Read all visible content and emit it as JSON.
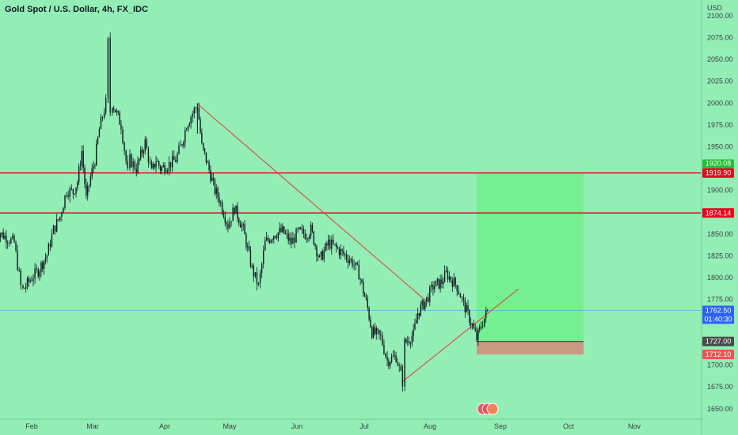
{
  "header": {
    "title": "Gold Spot / U.S. Dollar, 4h, FX_IDC"
  },
  "colors": {
    "background": "#92eeb5",
    "candle": "#131722",
    "resistance": "#e8001c",
    "trendline": "#e53935",
    "current_price_line": "#4fa3e0",
    "target_zone": "#6ef08a",
    "stop_zone": "#c89a82",
    "tag_green": "#21c034",
    "tag_red": "#e8001c",
    "tag_blue": "#2962ff",
    "tag_dark": "#4a4a4a",
    "tag_stop": "#ef5350"
  },
  "chart_data": {
    "type": "candlestick",
    "title": "Gold Spot / U.S. Dollar, 4h, FX_IDC",
    "ylabel": "USD",
    "ylim": [
      1638,
      2118
    ],
    "y_ticks": [
      1650,
      1675,
      1700,
      1725,
      1750,
      1775,
      1800,
      1825,
      1850,
      1875,
      1900,
      1925,
      1950,
      1975,
      2000,
      2025,
      2050,
      2075,
      2100
    ],
    "y_tick_labels": [
      "1650.00",
      "1675.00",
      "1700.00",
      "1725.00",
      "1750.00",
      "1775.00",
      "1800.00",
      "1825.00",
      "1850.00",
      "1875.00",
      "1900.00",
      "1925.00",
      "1950.00",
      "1975.00",
      "2000.00",
      "2025.00",
      "2050.00",
      "2075.00",
      "2100.00"
    ],
    "x_ticks": [
      "Feb",
      "Mar",
      "Apr",
      "May",
      "Jun",
      "Jul",
      "Aug",
      "Sep",
      "Oct",
      "Nov"
    ],
    "price_path": [
      {
        "x": "Jan 15",
        "y": 1820
      },
      {
        "x": "Jan 17",
        "y": 1852
      },
      {
        "x": "Jan 21",
        "y": 1845
      },
      {
        "x": "Jan 24",
        "y": 1840
      },
      {
        "x": "Jan 27",
        "y": 1790
      },
      {
        "x": "Jan 28",
        "y": 1786
      },
      {
        "x": "Feb 01",
        "y": 1800
      },
      {
        "x": "Feb 04",
        "y": 1808
      },
      {
        "x": "Feb 08",
        "y": 1826
      },
      {
        "x": "Feb 11",
        "y": 1855
      },
      {
        "x": "Feb 14",
        "y": 1870
      },
      {
        "x": "Feb 17",
        "y": 1900
      },
      {
        "x": "Feb 20",
        "y": 1898
      },
      {
        "x": "Feb 22",
        "y": 1910
      },
      {
        "x": "Feb 24",
        "y": 1945
      },
      {
        "x": "Feb 26",
        "y": 1890
      },
      {
        "x": "Feb 28",
        "y": 1915
      },
      {
        "x": "Mar 02",
        "y": 1935
      },
      {
        "x": "Mar 04",
        "y": 1970
      },
      {
        "x": "Mar 07",
        "y": 2000
      },
      {
        "x": "Mar 08",
        "y": 2070
      },
      {
        "x": "Mar 09",
        "y": 1990
      },
      {
        "x": "Mar 10",
        "y": 2000
      },
      {
        "x": "Mar 14",
        "y": 1975
      },
      {
        "x": "Mar 17",
        "y": 1920
      },
      {
        "x": "Mar 18",
        "y": 1935
      },
      {
        "x": "Mar 21",
        "y": 1925
      },
      {
        "x": "Mar 25",
        "y": 1955
      },
      {
        "x": "Mar 28",
        "y": 1920
      },
      {
        "x": "Mar 30",
        "y": 1935
      },
      {
        "x": "Apr 01",
        "y": 1925
      },
      {
        "x": "Apr 05",
        "y": 1930
      },
      {
        "x": "Apr 08",
        "y": 1935
      },
      {
        "x": "Apr 11",
        "y": 1955
      },
      {
        "x": "Apr 13",
        "y": 1975
      },
      {
        "x": "Apr 15",
        "y": 1985
      },
      {
        "x": "Apr 18",
        "y": 1998
      },
      {
        "x": "Apr 20",
        "y": 1950
      },
      {
        "x": "Apr 22",
        "y": 1935
      },
      {
        "x": "Apr 26",
        "y": 1900
      },
      {
        "x": "Apr 28",
        "y": 1890
      },
      {
        "x": "May 02",
        "y": 1860
      },
      {
        "x": "May 05",
        "y": 1880
      },
      {
        "x": "May 09",
        "y": 1855
      },
      {
        "x": "May 13",
        "y": 1810
      },
      {
        "x": "May 16",
        "y": 1790
      },
      {
        "x": "May 19",
        "y": 1840
      },
      {
        "x": "May 23",
        "y": 1850
      },
      {
        "x": "May 27",
        "y": 1853
      },
      {
        "x": "May 31",
        "y": 1840
      },
      {
        "x": "Jun 03",
        "y": 1852
      },
      {
        "x": "Jun 07",
        "y": 1850
      },
      {
        "x": "Jun 09",
        "y": 1855
      },
      {
        "x": "Jun 13",
        "y": 1820
      },
      {
        "x": "Jun 17",
        "y": 1840
      },
      {
        "x": "Jun 20",
        "y": 1835
      },
      {
        "x": "Jun 24",
        "y": 1827
      },
      {
        "x": "Jun 28",
        "y": 1818
      },
      {
        "x": "Jul 01",
        "y": 1805
      },
      {
        "x": "Jul 05",
        "y": 1765
      },
      {
        "x": "Jul 07",
        "y": 1738
      },
      {
        "x": "Jul 11",
        "y": 1732
      },
      {
        "x": "Jul 14",
        "y": 1705
      },
      {
        "x": "Jul 18",
        "y": 1710
      },
      {
        "x": "Jul 21",
        "y": 1681
      },
      {
        "x": "Jul 22",
        "y": 1725
      },
      {
        "x": "Jul 26",
        "y": 1735
      },
      {
        "x": "Jul 28",
        "y": 1760
      },
      {
        "x": "Aug 01",
        "y": 1775
      },
      {
        "x": "Aug 04",
        "y": 1790
      },
      {
        "x": "Aug 08",
        "y": 1795
      },
      {
        "x": "Aug 10",
        "y": 1805
      },
      {
        "x": "Aug 15",
        "y": 1790
      },
      {
        "x": "Aug 18",
        "y": 1770
      },
      {
        "x": "Aug 22",
        "y": 1745
      },
      {
        "x": "Aug 24",
        "y": 1730
      },
      {
        "x": "Aug 26",
        "y": 1745
      },
      {
        "x": "Aug 29",
        "y": 1762.5
      }
    ],
    "horizontal_lines": [
      {
        "price": 1919.9,
        "label": "1919.90"
      },
      {
        "price": 1874.14,
        "label": "1874.14"
      }
    ],
    "trendlines": [
      {
        "from": {
          "x": "Apr 18",
          "y": 1999
        },
        "to": {
          "x": "Aug 01",
          "y": 1773
        }
      },
      {
        "from": {
          "x": "Jul 21",
          "y": 1681
        },
        "to": {
          "x": "Sep 12",
          "y": 1787
        }
      }
    ],
    "position": {
      "start": "Aug 24",
      "end": "Oct 12",
      "target": 1920.08,
      "entry": 1727.0,
      "stop": 1712.1
    },
    "current_price": 1762.5
  },
  "axis": {
    "currency": "USD",
    "current_price_label": "1762.50",
    "countdown": "01:40:30",
    "target_label": "1920.08",
    "line_label_1": "1919.90",
    "line_label_2": "1874.14",
    "entry_label": "1727.00",
    "stop_label": "1712.10"
  }
}
